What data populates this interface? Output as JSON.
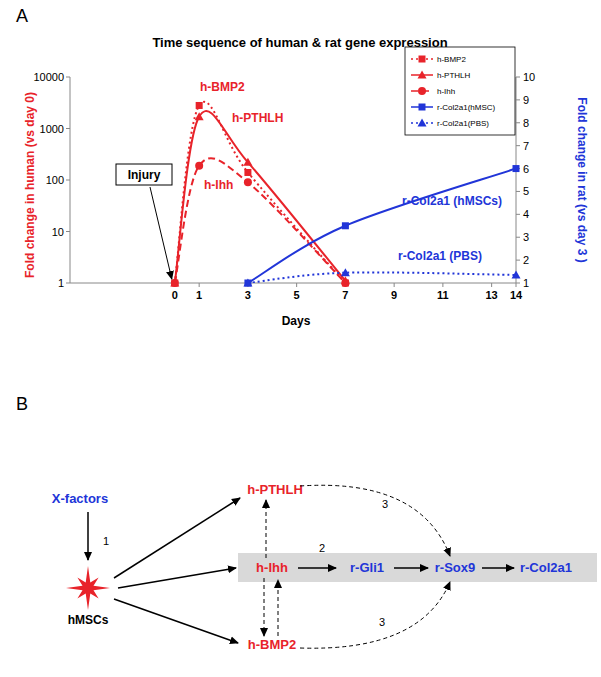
{
  "panel_labels": [
    "A",
    "B"
  ],
  "chart_data": {
    "type": "line",
    "title": "Time sequence of human & rat gene expression",
    "x_label": "Days",
    "y_label": "Fold change in human (vs day 0)",
    "y2_label": "Fold change in rat (vs day 3 )",
    "xlim": [
      -4.3,
      14
    ],
    "xticks": [
      0,
      1,
      3,
      5,
      7,
      9,
      11,
      13,
      14
    ],
    "ylim": [
      1,
      10000
    ],
    "yticks": [
      1,
      10,
      100,
      1000,
      10000
    ],
    "log": "y",
    "y2lim": [
      1,
      10
    ],
    "y2ticks": [
      1,
      2,
      3,
      4,
      5,
      6,
      7,
      8,
      9,
      10
    ],
    "grid": false,
    "legend": "upper right",
    "annotations": [
      "Injury"
    ],
    "series": [
      {
        "name": "h-BMP2",
        "label": "h-BMP2",
        "color": "#e8232a",
        "marker": "square",
        "line_style": "dotted",
        "x": [
          0,
          1,
          3,
          7
        ],
        "values": [
          1,
          2800,
          140,
          1
        ]
      },
      {
        "name": "h-PTHLH",
        "label": "h-PTHLH",
        "color": "#e8232a",
        "marker": "triangle",
        "line_style": "solid",
        "x": [
          0,
          1,
          3,
          7
        ],
        "values": [
          1,
          1700,
          220,
          1.1
        ]
      },
      {
        "name": "h-Ihh",
        "label": "h-Ihh",
        "color": "#e8232a",
        "marker": "circle",
        "line_style": "dashed",
        "x": [
          0,
          1,
          3,
          7
        ],
        "values": [
          1,
          190,
          90,
          1
        ]
      },
      {
        "name": "r-Col2a1(hMSC)",
        "label": "r-Col2a1 (hMSCs)",
        "color": "#2135d8",
        "marker": "square",
        "line_style": "solid",
        "axis": "y2",
        "x": [
          3,
          7,
          14
        ],
        "values": [
          1,
          3.5,
          6
        ]
      },
      {
        "name": "r-Col2a1(PBS)",
        "label": "r-Col2a1 (PBS)",
        "color": "#2135d8",
        "marker": "triangle",
        "line_style": "dotted",
        "axis": "y2",
        "x": [
          3,
          7,
          14
        ],
        "values": [
          1,
          1.45,
          1.35
        ]
      }
    ]
  },
  "diagram": {
    "nodes": [
      {
        "label": "X-factors",
        "color": "#2135d8"
      },
      {
        "label": "hMSCs",
        "color": "#e8232a"
      },
      {
        "label": "h-PTHLH",
        "color": "#e8232a"
      },
      {
        "label": "h-Ihh",
        "color": "#e8232a"
      },
      {
        "label": "r-Gli1",
        "color": "#2135d8"
      },
      {
        "label": "r-Sox9",
        "color": "#2135d8"
      },
      {
        "label": "r-Col2a1",
        "color": "#2135d8"
      },
      {
        "label": "h-BMP2",
        "color": "#e8232a"
      }
    ],
    "edges": [
      {
        "from": 0,
        "to": 1,
        "style": "solid",
        "label": "1"
      },
      {
        "from": 1,
        "to": 2,
        "style": "solid"
      },
      {
        "from": 1,
        "to": 3,
        "style": "solid"
      },
      {
        "from": 1,
        "to": 7,
        "style": "solid"
      },
      {
        "from": 3,
        "to": 4,
        "style": "solid",
        "label": "2"
      },
      {
        "from": 4,
        "to": 5,
        "style": "solid"
      },
      {
        "from": 5,
        "to": 6,
        "style": "solid"
      },
      {
        "from": 3,
        "to": 2,
        "style": "dashed"
      },
      {
        "from": 3,
        "to": 7,
        "style": "dashed"
      },
      {
        "from": 7,
        "to": 3,
        "style": "dashed"
      },
      {
        "from": 2,
        "to": 5,
        "style": "dashed",
        "label": "3"
      },
      {
        "from": 7,
        "to": 5,
        "style": "dashed",
        "label": "3"
      }
    ]
  }
}
